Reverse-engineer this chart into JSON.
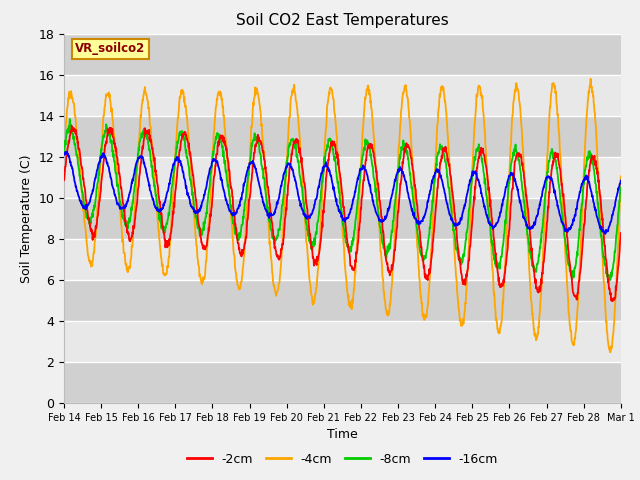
{
  "title": "Soil CO2 East Temperatures",
  "xlabel": "Time",
  "ylabel": "Soil Temperature (C)",
  "ylim": [
    0,
    18
  ],
  "annotation": "VR_soilco2",
  "legend_labels": [
    "-2cm",
    "-4cm",
    "-8cm",
    "-16cm"
  ],
  "legend_colors": [
    "#ff0000",
    "#ffa500",
    "#00cc00",
    "#0000ff"
  ],
  "colors": {
    "2cm": "#ff0000",
    "4cm": "#ffa500",
    "8cm": "#00cc00",
    "16cm": "#0000ff"
  },
  "xtick_labels": [
    "Feb 14",
    "Feb 15",
    "Feb 16",
    "Feb 17",
    "Feb 18",
    "Feb 19",
    "Feb 20",
    "Feb 21",
    "Feb 22",
    "Feb 23",
    "Feb 24",
    "Feb 25",
    "Feb 26",
    "Feb 27",
    "Feb 28",
    "Mar 1"
  ],
  "ytick_labels": [
    "0",
    "2",
    "4",
    "6",
    "8",
    "10",
    "12",
    "14",
    "16",
    "18"
  ],
  "background_color": "#f0f0f0",
  "band_light": "#e8e8e8",
  "band_dark": "#d0d0d0",
  "grid_color": "#ffffff"
}
